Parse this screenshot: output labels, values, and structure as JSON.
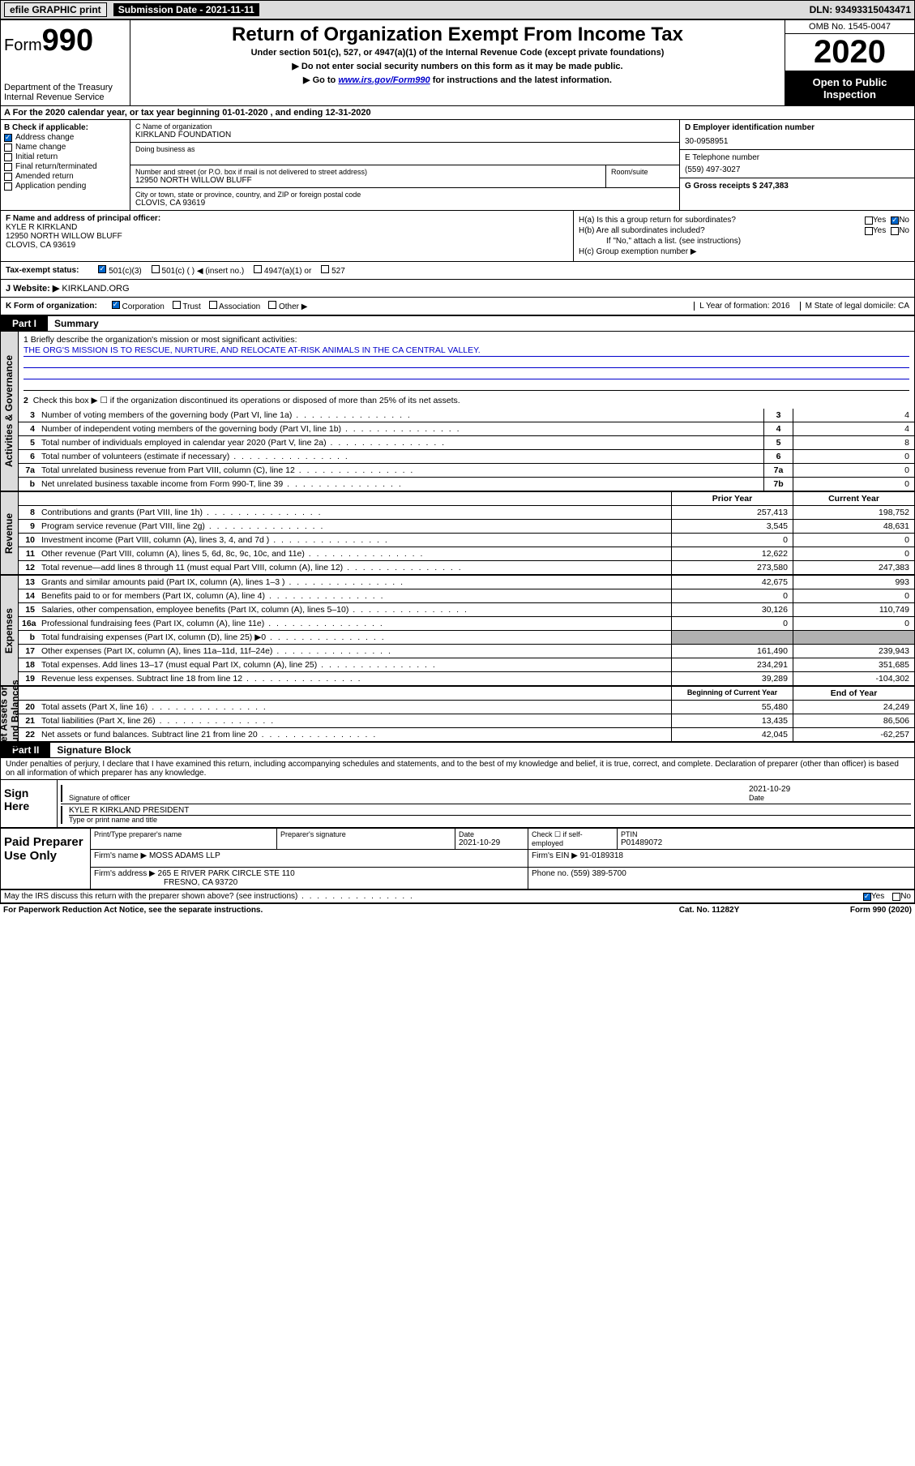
{
  "top": {
    "efile": "efile GRAPHIC print ",
    "submission_label": "Submission Date - 2021-11-11",
    "dln": "DLN: 93493315043471"
  },
  "header": {
    "form_prefix": "Form",
    "form_num": "990",
    "title": "Return of Organization Exempt From Income Tax",
    "sub1": "Under section 501(c), 527, or 4947(a)(1) of the Internal Revenue Code (except private foundations)",
    "sub2": "▶ Do not enter social security numbers on this form as it may be made public.",
    "sub3_prefix": "▶ Go to ",
    "sub3_link": "www.irs.gov/Form990",
    "sub3_suffix": " for instructions and the latest information.",
    "dept": "Department of the Treasury\nInternal Revenue Service",
    "omb": "OMB No. 1545-0047",
    "year": "2020",
    "inspection": "Open to Public Inspection"
  },
  "rowA": "A For the 2020 calendar year, or tax year beginning 01-01-2020    , and ending 12-31-2020",
  "B": {
    "label": "B Check if applicable:",
    "items": [
      "Address change",
      "Name change",
      "Initial return",
      "Final return/terminated",
      "Amended return",
      "Application pending"
    ],
    "checked_idx": 0
  },
  "C": {
    "name_label": "C Name of organization",
    "name": "KIRKLAND FOUNDATION",
    "dba_label": "Doing business as",
    "street_label": "Number and street (or P.O. box if mail is not delivered to street address)",
    "street": "12950 NORTH WILLOW BLUFF",
    "room_label": "Room/suite",
    "city_label": "City or town, state or province, country, and ZIP or foreign postal code",
    "city": "CLOVIS, CA  93619"
  },
  "D": {
    "label": "D Employer identification number",
    "value": "30-0958951"
  },
  "E": {
    "label": "E Telephone number",
    "value": "(559) 497-3027"
  },
  "G": {
    "label": "G Gross receipts $ 247,383"
  },
  "F": {
    "label": "F  Name and address of principal officer:",
    "name": "KYLE R KIRKLAND",
    "street": "12950 NORTH WILLOW BLUFF",
    "city": "CLOVIS, CA  93619"
  },
  "H": {
    "a": "H(a)  Is this a group return for subordinates?",
    "b": "H(b)  Are all subordinates included?",
    "b_note": "If \"No,\" attach a list. (see instructions)",
    "c": "H(c)  Group exemption number ▶",
    "yes": "Yes",
    "no": "No"
  },
  "I": {
    "label": "Tax-exempt status:",
    "opts": [
      "501(c)(3)",
      "501(c) (  ) ◀ (insert no.)",
      "4947(a)(1) or",
      "527"
    ]
  },
  "J": {
    "label": "J   Website: ▶",
    "value": "KIRKLAND.ORG"
  },
  "K": {
    "label": "K Form of organization:",
    "opts": [
      "Corporation",
      "Trust",
      "Association",
      "Other ▶"
    ],
    "L": "L Year of formation: 2016",
    "M": "M State of legal domicile: CA"
  },
  "partI": {
    "tab": "Part I",
    "title": "Summary"
  },
  "mission": {
    "q1": "1  Briefly describe the organization's mission or most significant activities:",
    "text": "THE ORG'S MISSION IS TO RESCUE, NURTURE, AND RELOCATE AT-RISK ANIMALS IN THE CA CENTRAL VALLEY.",
    "q2": "Check this box ▶ ☐  if the organization discontinued its operations or disposed of more than 25% of its net assets."
  },
  "governance": [
    {
      "n": "3",
      "d": "Number of voting members of the governing body (Part VI, line 1a)",
      "b": "3",
      "v": "4"
    },
    {
      "n": "4",
      "d": "Number of independent voting members of the governing body (Part VI, line 1b)",
      "b": "4",
      "v": "4"
    },
    {
      "n": "5",
      "d": "Total number of individuals employed in calendar year 2020 (Part V, line 2a)",
      "b": "5",
      "v": "8"
    },
    {
      "n": "6",
      "d": "Total number of volunteers (estimate if necessary)",
      "b": "6",
      "v": "0"
    },
    {
      "n": "7a",
      "d": "Total unrelated business revenue from Part VIII, column (C), line 12",
      "b": "7a",
      "v": "0"
    },
    {
      "n": "b",
      "d": "Net unrelated business taxable income from Form 990-T, line 39",
      "b": "7b",
      "v": "0"
    }
  ],
  "revenue_header": {
    "prior": "Prior Year",
    "current": "Current Year"
  },
  "revenue": [
    {
      "n": "8",
      "d": "Contributions and grants (Part VIII, line 1h)",
      "p": "257,413",
      "c": "198,752"
    },
    {
      "n": "9",
      "d": "Program service revenue (Part VIII, line 2g)",
      "p": "3,545",
      "c": "48,631"
    },
    {
      "n": "10",
      "d": "Investment income (Part VIII, column (A), lines 3, 4, and 7d )",
      "p": "0",
      "c": "0"
    },
    {
      "n": "11",
      "d": "Other revenue (Part VIII, column (A), lines 5, 6d, 8c, 9c, 10c, and 11e)",
      "p": "12,622",
      "c": "0"
    },
    {
      "n": "12",
      "d": "Total revenue—add lines 8 through 11 (must equal Part VIII, column (A), line 12)",
      "p": "273,580",
      "c": "247,383"
    }
  ],
  "expenses": [
    {
      "n": "13",
      "d": "Grants and similar amounts paid (Part IX, column (A), lines 1–3 )",
      "p": "42,675",
      "c": "993"
    },
    {
      "n": "14",
      "d": "Benefits paid to or for members (Part IX, column (A), line 4)",
      "p": "0",
      "c": "0"
    },
    {
      "n": "15",
      "d": "Salaries, other compensation, employee benefits (Part IX, column (A), lines 5–10)",
      "p": "30,126",
      "c": "110,749"
    },
    {
      "n": "16a",
      "d": "Professional fundraising fees (Part IX, column (A), line 11e)",
      "p": "0",
      "c": "0"
    },
    {
      "n": "b",
      "d": "Total fundraising expenses (Part IX, column (D), line 25) ▶0",
      "p": "",
      "c": "",
      "grey": true
    },
    {
      "n": "17",
      "d": "Other expenses (Part IX, column (A), lines 11a–11d, 11f–24e)",
      "p": "161,490",
      "c": "239,943"
    },
    {
      "n": "18",
      "d": "Total expenses. Add lines 13–17 (must equal Part IX, column (A), line 25)",
      "p": "234,291",
      "c": "351,685"
    },
    {
      "n": "19",
      "d": "Revenue less expenses. Subtract line 18 from line 12",
      "p": "39,289",
      "c": "-104,302"
    }
  ],
  "net_header": {
    "begin": "Beginning of Current Year",
    "end": "End of Year"
  },
  "netassets": [
    {
      "n": "20",
      "d": "Total assets (Part X, line 16)",
      "p": "55,480",
      "c": "24,249"
    },
    {
      "n": "21",
      "d": "Total liabilities (Part X, line 26)",
      "p": "13,435",
      "c": "86,506"
    },
    {
      "n": "22",
      "d": "Net assets or fund balances. Subtract line 21 from line 20",
      "p": "42,045",
      "c": "-62,257"
    }
  ],
  "partII": {
    "tab": "Part II",
    "title": "Signature Block"
  },
  "penalty": "Under penalties of perjury, I declare that I have examined this return, including accompanying schedules and statements, and to the best of my knowledge and belief, it is true, correct, and complete. Declaration of preparer (other than officer) is based on all information of which preparer has any knowledge.",
  "sign": {
    "here": "Sign Here",
    "sig_label": "Signature of officer",
    "date": "2021-10-29",
    "date_label": "Date",
    "name": "KYLE R KIRKLAND  PRESIDENT",
    "name_label": "Type or print name and title"
  },
  "prep": {
    "label": "Paid Preparer Use Only",
    "h1": "Print/Type preparer's name",
    "h2": "Preparer's signature",
    "h3": "Date",
    "date": "2021-10-29",
    "h4": "Check ☐ if self-employed",
    "h5": "PTIN",
    "ptin": "P01489072",
    "firm_label": "Firm's name    ▶",
    "firm": "MOSS ADAMS LLP",
    "ein_label": "Firm's EIN ▶",
    "ein": "91-0189318",
    "addr_label": "Firm's address ▶",
    "addr1": "265 E RIVER PARK CIRCLE STE 110",
    "addr2": "FRESNO, CA  93720",
    "phone_label": "Phone no.",
    "phone": "(559) 389-5700"
  },
  "irs_discuss": "May the IRS discuss this return with the preparer shown above? (see instructions)",
  "footer": {
    "left": "For Paperwork Reduction Act Notice, see the separate instructions.",
    "mid": "Cat. No. 11282Y",
    "right": "Form 990 (2020)"
  },
  "colors": {
    "link": "#0000cc",
    "grey_bg": "#dcdcdc",
    "cell_grey": "#b0b0b0"
  }
}
